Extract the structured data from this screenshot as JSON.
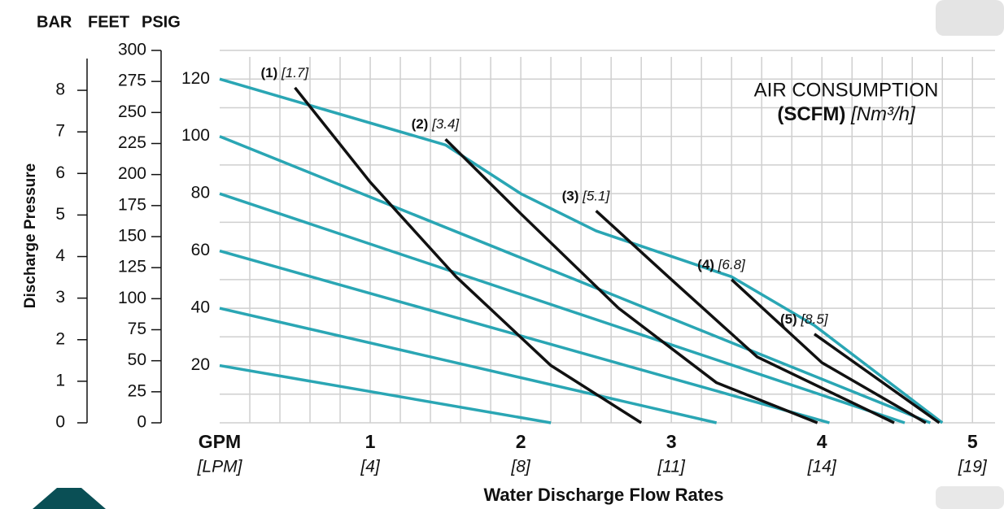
{
  "chart_data": {
    "type": "line",
    "axis_headers": [
      "BAR",
      "FEET",
      "PSIG"
    ],
    "ylabel": "Discharge Pressure",
    "xlabel": "Water Discharge Flow Rates",
    "x_unit": "GPM",
    "x2_unit": "[LPM]",
    "legend_title": "AIR CONSUMPTION",
    "legend_unit": "(SCFM)",
    "legend_unit2": "[Nm³/h]",
    "xlim": [
      0,
      5.15
    ],
    "xticks": [
      1,
      2,
      3,
      4,
      5
    ],
    "x2_tick_labels": [
      "[4]",
      "[8]",
      "[11]",
      "[14]",
      "[19]"
    ],
    "minor_xticks": [
      0.2,
      0.4,
      0.6,
      0.8,
      1,
      1.2,
      1.4,
      1.6,
      1.8,
      2,
      2.2,
      2.4,
      2.6,
      2.8,
      3,
      3.2,
      3.4,
      3.6,
      3.8,
      4,
      4.2,
      4.4,
      4.6,
      4.8,
      5
    ],
    "ylim": [
      0,
      130
    ],
    "yticks": [
      20,
      40,
      60,
      80,
      100,
      120
    ],
    "minor_yticks": [
      10,
      20,
      30,
      40,
      50,
      60,
      70,
      80,
      90,
      100,
      110,
      120,
      130
    ],
    "feet_lim": [
      0,
      300
    ],
    "feet_ticks": [
      0,
      25,
      50,
      75,
      100,
      125,
      150,
      175,
      200,
      225,
      250,
      275,
      300
    ],
    "bar_lim": [
      0,
      8.96
    ],
    "bar_ticks": [
      0,
      1,
      2,
      3,
      4,
      5,
      6,
      7,
      8
    ],
    "grid": true,
    "air_pressure_lines": [
      {
        "color": "#2aa6b4",
        "x": [
          0,
          1.5,
          2,
          2.5,
          3.4,
          3.95,
          4.8
        ],
        "values": [
          120,
          97,
          80,
          67,
          51,
          34,
          0
        ]
      },
      {
        "color": "#2aa6b4",
        "x": [
          0,
          4.72
        ],
        "values": [
          100,
          0
        ]
      },
      {
        "color": "#2aa6b4",
        "x": [
          0,
          4.55
        ],
        "values": [
          80,
          0
        ]
      },
      {
        "color": "#2aa6b4",
        "x": [
          0,
          4.05
        ],
        "values": [
          60,
          0
        ]
      },
      {
        "color": "#2aa6b4",
        "x": [
          0,
          3.3
        ],
        "values": [
          40,
          0
        ]
      },
      {
        "color": "#2aa6b4",
        "x": [
          0,
          2.2
        ],
        "values": [
          20,
          0
        ]
      }
    ],
    "series": [
      {
        "name": "(1)",
        "label": "[1.7]",
        "color": "#111111",
        "x": [
          0.5,
          1.0,
          1.57,
          2.2,
          2.8
        ],
        "values": [
          117,
          84,
          51,
          20,
          0
        ]
      },
      {
        "name": "(2)",
        "label": "[3.4]",
        "color": "#111111",
        "x": [
          1.5,
          2.0,
          2.65,
          3.3,
          3.97
        ],
        "values": [
          99,
          73,
          40,
          14,
          0
        ]
      },
      {
        "name": "(3)",
        "label": "[5.1]",
        "color": "#111111",
        "x": [
          2.5,
          3.0,
          3.57,
          4.48
        ],
        "values": [
          74,
          50,
          23,
          0
        ]
      },
      {
        "name": "(4)",
        "label": "[6.8]",
        "color": "#111111",
        "x": [
          3.4,
          4.0,
          4.69
        ],
        "values": [
          50,
          21,
          0
        ]
      },
      {
        "name": "(5)",
        "label": "[8.5]",
        "color": "#111111",
        "x": [
          3.95,
          4.78
        ],
        "values": [
          31,
          0
        ]
      }
    ]
  }
}
